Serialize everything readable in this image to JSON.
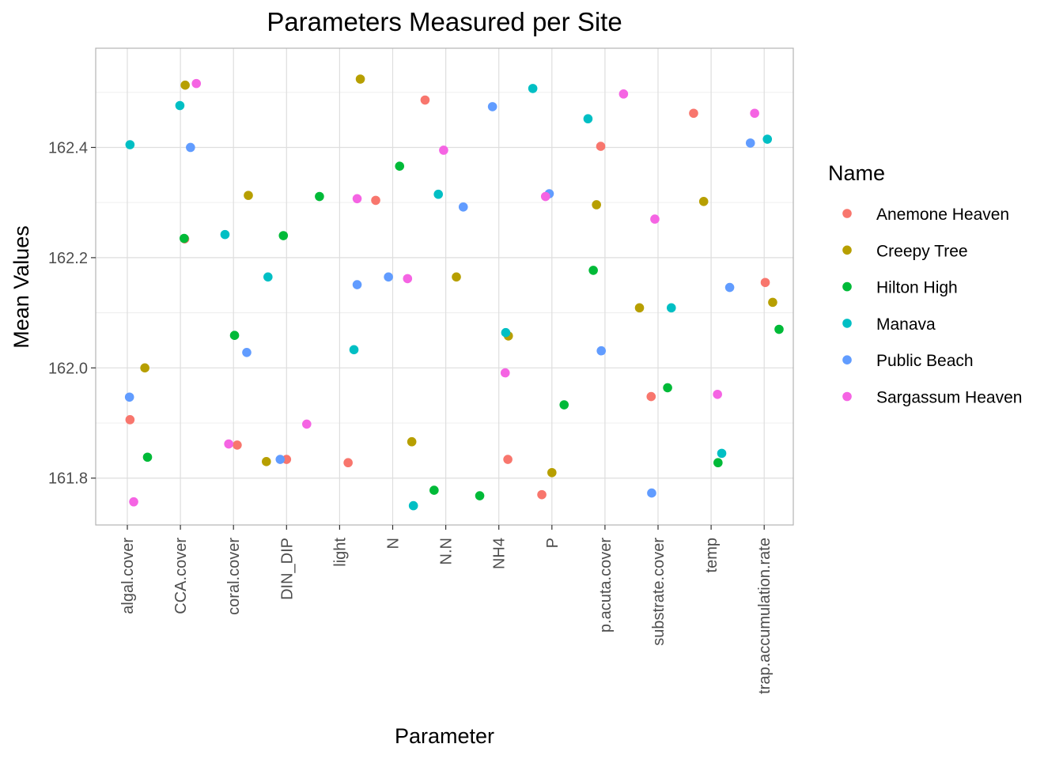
{
  "chart_data": {
    "type": "scatter",
    "title": "Parameters Measured per Site",
    "xlabel": "Parameter",
    "ylabel": "Mean Values",
    "ylim": [
      161.715,
      162.58
    ],
    "yticks": [
      "161.8",
      "162.0",
      "162.2",
      "162.4"
    ],
    "grid": true,
    "legend_title": "Name",
    "legend_position": "right",
    "categories": [
      "algal.cover",
      "CCA.cover",
      "coral.cover",
      "DIN_DIP",
      "light",
      "N",
      "N.N",
      "NH4",
      "P",
      "p.acuta.cover",
      "substrate.cover",
      "temp",
      "trap.accumulation.rate"
    ],
    "series": [
      {
        "name": "Anemone Heaven",
        "color": "#F8766D",
        "points": [
          {
            "x": "algal.cover",
            "offset": 0.05,
            "y": 161.906
          },
          {
            "x": "CCA.cover",
            "offset": 0.08,
            "y": 162.234
          },
          {
            "x": "coral.cover",
            "offset": 0.07,
            "y": 161.86
          },
          {
            "x": "DIN_DIP",
            "offset": 0.0,
            "y": 161.834
          },
          {
            "x": "light",
            "offset": 0.16,
            "y": 161.828
          },
          {
            "x": "light",
            "offset": 0.68,
            "y": 162.304
          },
          {
            "x": "N",
            "offset": 0.61,
            "y": 162.486
          },
          {
            "x": "NH4",
            "offset": 0.17,
            "y": 161.834
          },
          {
            "x": "P",
            "offset": -0.19,
            "y": 161.77
          },
          {
            "x": "p.acuta.cover",
            "offset": -0.08,
            "y": 162.402
          },
          {
            "x": "substrate.cover",
            "offset": -0.13,
            "y": 161.948
          },
          {
            "x": "temp",
            "offset": -0.33,
            "y": 162.462
          },
          {
            "x": "trap.accumulation.rate",
            "offset": 0.02,
            "y": 162.155
          }
        ]
      },
      {
        "name": "Creepy Tree",
        "color": "#B79F00",
        "points": [
          {
            "x": "algal.cover",
            "offset": 0.33,
            "y": 162.0
          },
          {
            "x": "CCA.cover",
            "offset": 0.09,
            "y": 162.513
          },
          {
            "x": "coral.cover",
            "offset": 0.28,
            "y": 162.313
          },
          {
            "x": "DIN_DIP",
            "offset": -0.38,
            "y": 161.83
          },
          {
            "x": "light",
            "offset": 0.39,
            "y": 162.524
          },
          {
            "x": "N",
            "offset": 0.36,
            "y": 161.866
          },
          {
            "x": "N.N",
            "offset": 0.2,
            "y": 162.165
          },
          {
            "x": "NH4",
            "offset": 0.18,
            "y": 162.058
          },
          {
            "x": "P",
            "offset": 0.0,
            "y": 161.81
          },
          {
            "x": "p.acuta.cover",
            "offset": -0.16,
            "y": 162.296
          },
          {
            "x": "p.acuta.cover",
            "offset": 0.65,
            "y": 162.109
          },
          {
            "x": "temp",
            "offset": -0.14,
            "y": 162.302
          },
          {
            "x": "trap.accumulation.rate",
            "offset": 0.16,
            "y": 162.119
          }
        ]
      },
      {
        "name": "Hilton High",
        "color": "#00BA38",
        "points": [
          {
            "x": "algal.cover",
            "offset": 0.38,
            "y": 161.838
          },
          {
            "x": "CCA.cover",
            "offset": 0.07,
            "y": 162.235
          },
          {
            "x": "coral.cover",
            "offset": 0.02,
            "y": 162.059
          },
          {
            "x": "DIN_DIP",
            "offset": -0.06,
            "y": 162.24
          },
          {
            "x": "DIN_DIP",
            "offset": 0.62,
            "y": 162.311
          },
          {
            "x": "N",
            "offset": 0.13,
            "y": 162.366
          },
          {
            "x": "N.N",
            "offset": -0.22,
            "y": 161.778
          },
          {
            "x": "NH4",
            "offset": -0.36,
            "y": 161.768
          },
          {
            "x": "P",
            "offset": 0.23,
            "y": 161.933
          },
          {
            "x": "p.acuta.cover",
            "offset": -0.22,
            "y": 162.177
          },
          {
            "x": "substrate.cover",
            "offset": 0.18,
            "y": 161.964
          },
          {
            "x": "temp",
            "offset": 0.13,
            "y": 161.828
          },
          {
            "x": "trap.accumulation.rate",
            "offset": 0.28,
            "y": 162.07
          }
        ]
      },
      {
        "name": "Manava",
        "color": "#00BFC4",
        "points": [
          {
            "x": "algal.cover",
            "offset": 0.05,
            "y": 162.405
          },
          {
            "x": "CCA.cover",
            "offset": -0.01,
            "y": 162.476
          },
          {
            "x": "coral.cover",
            "offset": -0.16,
            "y": 162.242
          },
          {
            "x": "DIN_DIP",
            "offset": -0.35,
            "y": 162.165
          },
          {
            "x": "light",
            "offset": 0.27,
            "y": 162.033
          },
          {
            "x": "N",
            "offset": 0.39,
            "y": 161.75
          },
          {
            "x": "N.N",
            "offset": -0.14,
            "y": 162.315
          },
          {
            "x": "NH4",
            "offset": 0.13,
            "y": 162.064
          },
          {
            "x": "P",
            "offset": -0.36,
            "y": 162.507
          },
          {
            "x": "p.acuta.cover",
            "offset": -0.32,
            "y": 162.452
          },
          {
            "x": "substrate.cover",
            "offset": 0.25,
            "y": 162.109
          },
          {
            "x": "temp",
            "offset": 0.2,
            "y": 161.845
          },
          {
            "x": "trap.accumulation.rate",
            "offset": 0.06,
            "y": 162.415
          }
        ]
      },
      {
        "name": "Public Beach",
        "color": "#619CFF",
        "points": [
          {
            "x": "algal.cover",
            "offset": 0.04,
            "y": 161.947
          },
          {
            "x": "CCA.cover",
            "offset": 0.19,
            "y": 162.4
          },
          {
            "x": "coral.cover",
            "offset": 0.25,
            "y": 162.028
          },
          {
            "x": "DIN_DIP",
            "offset": -0.12,
            "y": 161.834
          },
          {
            "x": "light",
            "offset": 0.33,
            "y": 162.151
          },
          {
            "x": "N",
            "offset": -0.08,
            "y": 162.165
          },
          {
            "x": "N.N",
            "offset": 0.33,
            "y": 162.292
          },
          {
            "x": "NH4",
            "offset": -0.12,
            "y": 162.474
          },
          {
            "x": "P",
            "offset": -0.05,
            "y": 162.316
          },
          {
            "x": "p.acuta.cover",
            "offset": -0.07,
            "y": 162.031
          },
          {
            "x": "substrate.cover",
            "offset": -0.12,
            "y": 161.773
          },
          {
            "x": "temp",
            "offset": 0.35,
            "y": 162.146
          },
          {
            "x": "trap.accumulation.rate",
            "offset": -0.26,
            "y": 162.408
          }
        ]
      },
      {
        "name": "Sargassum Heaven",
        "color": "#F564E3",
        "points": [
          {
            "x": "algal.cover",
            "offset": 0.12,
            "y": 161.757
          },
          {
            "x": "CCA.cover",
            "offset": 0.3,
            "y": 162.516
          },
          {
            "x": "coral.cover",
            "offset": -0.09,
            "y": 161.862
          },
          {
            "x": "DIN_DIP",
            "offset": 0.38,
            "y": 161.898
          },
          {
            "x": "light",
            "offset": 0.33,
            "y": 162.307
          },
          {
            "x": "N",
            "offset": 0.28,
            "y": 162.162
          },
          {
            "x": "N.N",
            "offset": -0.04,
            "y": 162.395
          },
          {
            "x": "NH4",
            "offset": 0.12,
            "y": 161.991
          },
          {
            "x": "P",
            "offset": -0.12,
            "y": 162.311
          },
          {
            "x": "p.acuta.cover",
            "offset": 0.35,
            "y": 162.497
          },
          {
            "x": "substrate.cover",
            "offset": -0.06,
            "y": 162.27
          },
          {
            "x": "temp",
            "offset": 0.12,
            "y": 161.952
          },
          {
            "x": "trap.accumulation.rate",
            "offset": -0.18,
            "y": 162.462
          }
        ]
      }
    ]
  }
}
